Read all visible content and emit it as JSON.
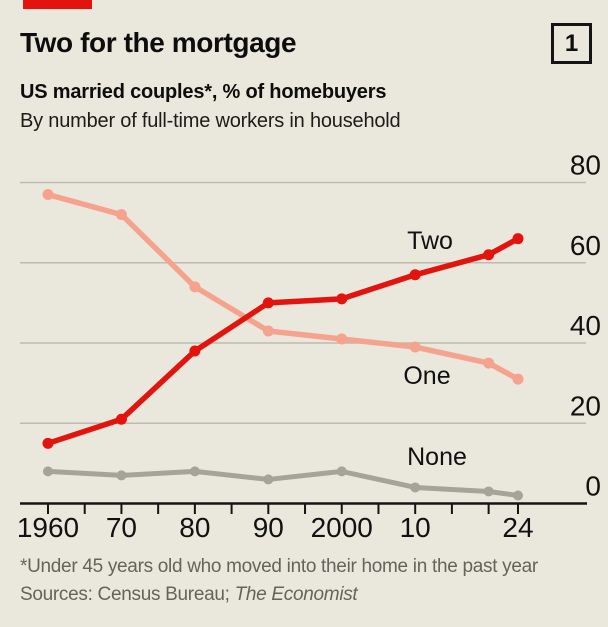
{
  "header": {
    "title": "Two for the mortgage",
    "figure_number": "1",
    "subtitle_bold": "US married couples*, % of homebuyers",
    "subtitle_regular": "By number of full-time workers in household"
  },
  "chart_data": {
    "type": "line",
    "title": "Two for the mortgage",
    "x": [
      1960,
      1970,
      1980,
      1990,
      2000,
      2010,
      2020,
      2024
    ],
    "series": [
      {
        "name": "Two",
        "color": "#e3140d",
        "values": [
          15,
          21,
          38,
          50,
          51,
          57,
          62,
          66
        ]
      },
      {
        "name": "One",
        "color": "#f5a38e",
        "values": [
          77,
          72,
          54,
          43,
          41,
          39,
          35,
          31
        ]
      },
      {
        "name": "None",
        "color": "#a5a496",
        "values": [
          8,
          7,
          8,
          6,
          8,
          4,
          3,
          2
        ]
      }
    ],
    "ylim": [
      0,
      80
    ],
    "yticks": [
      0,
      20,
      40,
      60,
      80
    ],
    "xticks": [
      {
        "year": 1960,
        "label": "1960"
      },
      {
        "year": 1970,
        "label": "70"
      },
      {
        "year": 1980,
        "label": "80"
      },
      {
        "year": 1990,
        "label": "90"
      },
      {
        "year": 2000,
        "label": "2000"
      },
      {
        "year": 2010,
        "label": "10"
      },
      {
        "year": 2024,
        "label": "24"
      }
    ],
    "minor_tick_interval_years": 5,
    "grid": "horizontal",
    "legend_position": "inline-labels"
  },
  "notes": {
    "footnote": "*Under 45 years old who moved into their home in the past year",
    "sources_prefix": "Sources: Census Bureau; ",
    "sources_italic": "The Economist"
  },
  "colors": {
    "background": "#eae8dd",
    "accent_red": "#e3140d",
    "text": "#0f0f0f",
    "muted_text": "#64645a",
    "gridline": "#bdbbaf",
    "axis": "#141414"
  }
}
